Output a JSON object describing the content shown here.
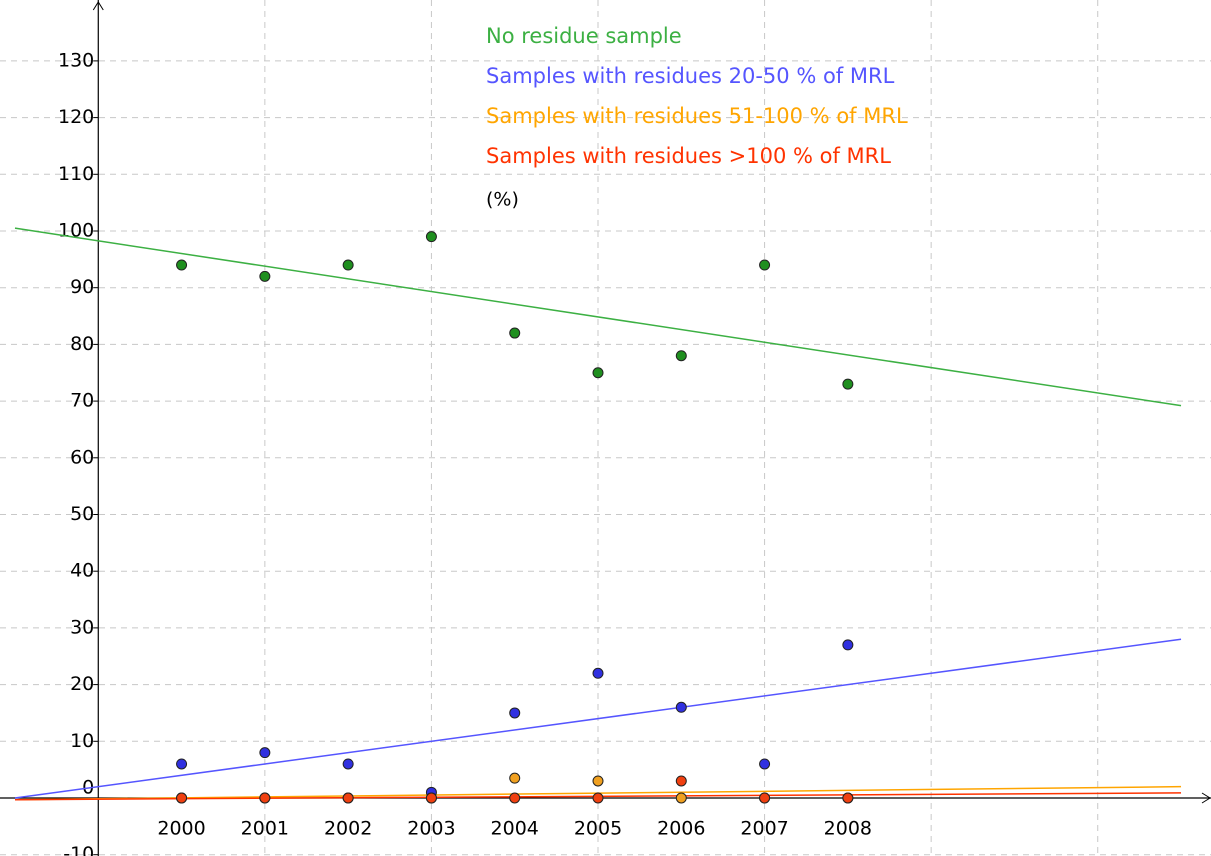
{
  "chart_data": {
    "type": "scatter",
    "x": [
      2000,
      2001,
      2002,
      2003,
      2004,
      2005,
      2006,
      2007,
      2008
    ],
    "series": [
      {
        "name": "No residue sample",
        "color": "#1f8f1f",
        "line_color": "#3cb043",
        "values": [
          94,
          92,
          94,
          99,
          82,
          75,
          78,
          94,
          73
        ]
      },
      {
        "name": "Samples with residues 20-50 % of MRL",
        "color": "#3030e0",
        "line_color": "#5555ff",
        "values": [
          6,
          8,
          6,
          1,
          15,
          22,
          16,
          6,
          27
        ]
      },
      {
        "name": "Samples with residues 51-100 % of MRL",
        "color": "#f0a020",
        "line_color": "#ffa500",
        "values": [
          0,
          0,
          0,
          0,
          3.5,
          3,
          0,
          0,
          0
        ]
      },
      {
        "name": "Samples with residues >100 % of MRL",
        "color": "#f04010",
        "line_color": "#ff3300",
        "values": [
          0,
          0,
          0,
          0,
          0,
          0,
          3,
          0,
          0
        ]
      }
    ],
    "trend_lines": [
      {
        "x": [
          1998,
          2012
        ],
        "values": [
          100.5,
          69.2
        ]
      },
      {
        "x": [
          1998,
          2012
        ],
        "values": [
          0,
          28
        ]
      },
      {
        "x": [
          1998,
          2012
        ],
        "values": [
          -0.3,
          2
        ]
      },
      {
        "x": [
          1998,
          2012
        ],
        "values": [
          -0.3,
          0.9
        ]
      }
    ],
    "unit_note": "(%)",
    "xlim": [
      1997.82,
      2012.36
    ],
    "ylim": [
      -10.23,
      140.74
    ],
    "xticks": [
      2000,
      2001,
      2002,
      2003,
      2004,
      2005,
      2006,
      2007,
      2008
    ],
    "xgrid": [
      2001,
      2003,
      2005,
      2007,
      2009,
      2011
    ],
    "yticks": [
      -10,
      0,
      10,
      20,
      30,
      40,
      50,
      60,
      70,
      80,
      90,
      100,
      110,
      120,
      130
    ],
    "y_axis_at": 1999,
    "grid": true
  }
}
